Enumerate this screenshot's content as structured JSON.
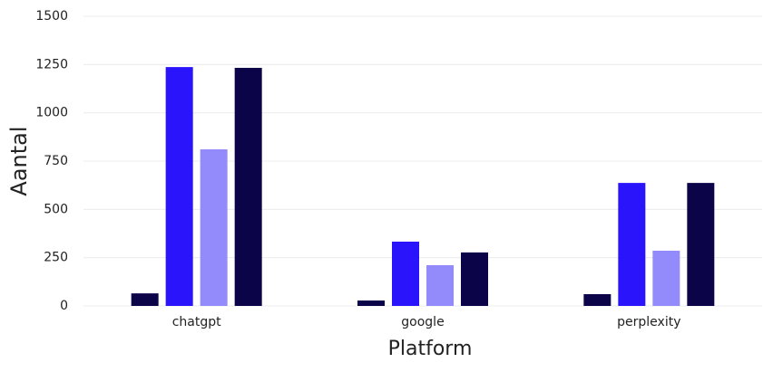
{
  "chart_data": {
    "type": "bar",
    "x_label": "Platform",
    "y_label": "Aantal",
    "categories": [
      "chatgpt",
      "google",
      "perplexity"
    ],
    "series": [
      {
        "color": "#0b0449",
        "values": [
          65,
          28,
          61
        ]
      },
      {
        "color": "#2a14fb",
        "values": [
          1237,
          333,
          637
        ]
      },
      {
        "color": "#938bfb",
        "values": [
          811,
          211,
          286
        ]
      },
      {
        "color": "#0b0449",
        "values": [
          1233,
          277,
          637
        ]
      }
    ],
    "ylim": [
      0,
      1500
    ],
    "yticks": [
      0,
      250,
      500,
      750,
      1000,
      1250,
      1500
    ],
    "grid": true
  }
}
